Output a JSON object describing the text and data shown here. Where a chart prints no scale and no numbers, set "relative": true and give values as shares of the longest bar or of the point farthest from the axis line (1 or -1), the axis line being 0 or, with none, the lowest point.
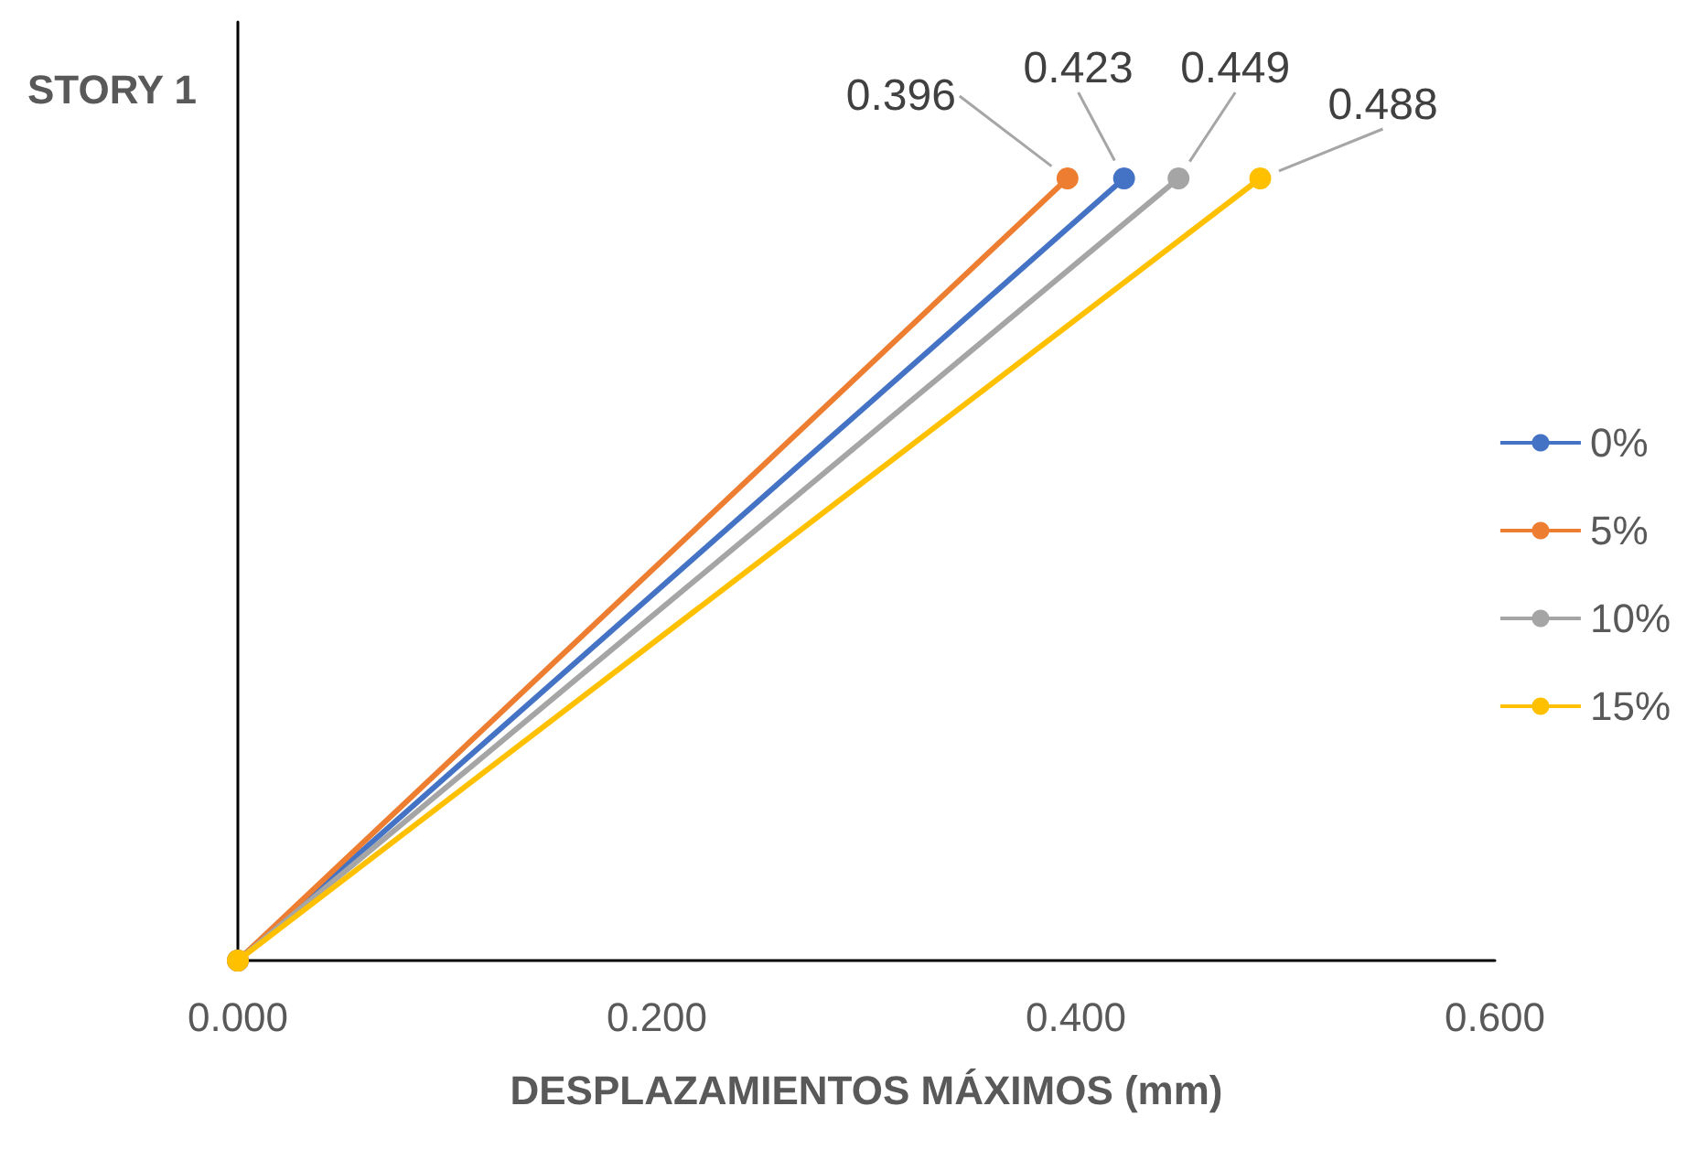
{
  "chart_data": {
    "type": "line",
    "relative": true,
    "ylabel": "STORY 1",
    "xlabel": "DESPLAZAMIENTOS MÁXIMOS (mm)",
    "xlim": [
      0,
      0.6
    ],
    "xticks": [
      {
        "value": 0,
        "label": "0.000"
      },
      {
        "value": 0.2,
        "label": "0.200"
      },
      {
        "value": 0.4,
        "label": "0.400"
      },
      {
        "value": 0.6,
        "label": "0.600"
      }
    ],
    "series": [
      {
        "name": "0%",
        "color": "#4472c4",
        "x": [
          0,
          0.423
        ],
        "values": [
          0,
          1
        ]
      },
      {
        "name": "5%",
        "color": "#ed7d31",
        "x": [
          0,
          0.396
        ],
        "values": [
          0,
          1
        ]
      },
      {
        "name": "10%",
        "color": "#a5a5a5",
        "x": [
          0,
          0.449
        ],
        "values": [
          0,
          1
        ]
      },
      {
        "name": "15%",
        "color": "#ffc000",
        "x": [
          0,
          0.488
        ],
        "values": [
          0,
          1
        ]
      }
    ],
    "annotations": [
      {
        "text": "0.423",
        "x": 0.423,
        "y": 1
      },
      {
        "text": "0.396",
        "x": 0.396,
        "y": 1
      },
      {
        "text": "0.449",
        "x": 0.449,
        "y": 1
      },
      {
        "text": "0.488",
        "x": 0.488,
        "y": 1
      }
    ],
    "marker": "circle",
    "grid": false,
    "legend": "right"
  }
}
